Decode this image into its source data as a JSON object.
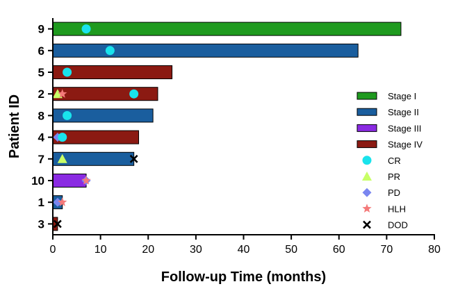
{
  "chart_data": {
    "type": "bar",
    "orientation": "horizontal",
    "title": "",
    "xlabel": "Follow-up Time (months)",
    "ylabel": "Patient ID",
    "xlim": [
      0,
      80
    ],
    "xticks": [
      0,
      10,
      20,
      30,
      40,
      50,
      60,
      70,
      80
    ],
    "grid": false,
    "legend_position": "right",
    "colors": {
      "Stage I": "#1f9a1f",
      "Stage II": "#1a5e9e",
      "Stage III": "#8a2be2",
      "Stage IV": "#8b1a12",
      "CR": "#19e3ec",
      "PR": "#c8ff66",
      "PD": "#7a86f0",
      "HLH": "#f47a7a",
      "DOD": "#000000"
    },
    "bars": [
      {
        "patient": "9",
        "stage": "Stage I",
        "value": 73
      },
      {
        "patient": "6",
        "stage": "Stage II",
        "value": 64
      },
      {
        "patient": "5",
        "stage": "Stage IV",
        "value": 25
      },
      {
        "patient": "2",
        "stage": "Stage IV",
        "value": 22
      },
      {
        "patient": "8",
        "stage": "Stage II",
        "value": 21
      },
      {
        "patient": "4",
        "stage": "Stage IV",
        "value": 18
      },
      {
        "patient": "7",
        "stage": "Stage II",
        "value": 17
      },
      {
        "patient": "10",
        "stage": "Stage III",
        "value": 7
      },
      {
        "patient": "1",
        "stage": "Stage II",
        "value": 2
      },
      {
        "patient": "3",
        "stage": "Stage IV",
        "value": 1
      }
    ],
    "events": [
      {
        "patient": "9",
        "type": "CR",
        "x": 7
      },
      {
        "patient": "6",
        "type": "CR",
        "x": 12
      },
      {
        "patient": "5",
        "type": "CR",
        "x": 3
      },
      {
        "patient": "2",
        "type": "PR",
        "x": 1
      },
      {
        "patient": "2",
        "type": "HLH",
        "x": 2
      },
      {
        "patient": "2",
        "type": "CR",
        "x": 17
      },
      {
        "patient": "8",
        "type": "CR",
        "x": 3
      },
      {
        "patient": "4",
        "type": "PD",
        "x": 1
      },
      {
        "patient": "4",
        "type": "CR",
        "x": 2
      },
      {
        "patient": "7",
        "type": "PR",
        "x": 2
      },
      {
        "patient": "7",
        "type": "DOD",
        "x": 17
      },
      {
        "patient": "10",
        "type": "PD",
        "x": 7
      },
      {
        "patient": "10",
        "type": "HLH",
        "x": 7
      },
      {
        "patient": "1",
        "type": "PD",
        "x": 1
      },
      {
        "patient": "1",
        "type": "HLH",
        "x": 2
      },
      {
        "patient": "3",
        "type": "DOD",
        "x": 1
      }
    ],
    "legend": [
      {
        "label": "Stage I",
        "kind": "bar"
      },
      {
        "label": "Stage II",
        "kind": "bar"
      },
      {
        "label": "Stage III",
        "kind": "bar"
      },
      {
        "label": "Stage IV",
        "kind": "bar"
      },
      {
        "label": "CR",
        "kind": "circle"
      },
      {
        "label": "PR",
        "kind": "triangle"
      },
      {
        "label": "PD",
        "kind": "diamond"
      },
      {
        "label": "HLH",
        "kind": "star"
      },
      {
        "label": "DOD",
        "kind": "cross"
      }
    ]
  }
}
